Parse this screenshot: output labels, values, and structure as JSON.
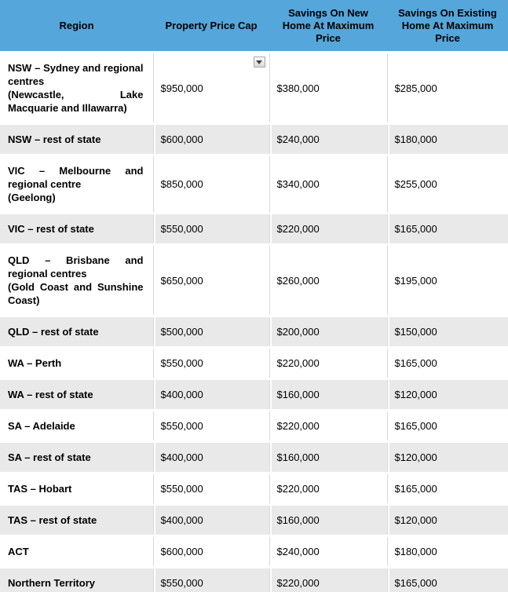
{
  "table": {
    "columns": [
      {
        "label": "Region"
      },
      {
        "label": "Property Price Cap"
      },
      {
        "label": "Savings On New Home At Maximum Price"
      },
      {
        "label": "Savings On Existing Home At Maximum Price"
      }
    ],
    "rows": [
      {
        "region": "NSW – Sydney and regional centres",
        "note": "(Newcastle, Lake Macquarie and Illawarra)",
        "cap": "$950,000",
        "savings_new": "$380,000",
        "savings_existing": "$285,000",
        "has_dropdown": true
      },
      {
        "region": "NSW – rest of state",
        "note": "",
        "cap": "$600,000",
        "savings_new": "$240,000",
        "savings_existing": "$180,000"
      },
      {
        "region": "VIC – Melbourne and regional centre",
        "note": "(Geelong)",
        "cap": "$850,000",
        "savings_new": "$340,000",
        "savings_existing": "$255,000"
      },
      {
        "region": "VIC – rest of state",
        "note": "",
        "cap": "$550,000",
        "savings_new": "$220,000",
        "savings_existing": "$165,000"
      },
      {
        "region": "QLD – Brisbane and regional centres",
        "note": "(Gold Coast and Sunshine Coast)",
        "cap": "$650,000",
        "savings_new": "$260,000",
        "savings_existing": "$195,000"
      },
      {
        "region": "QLD – rest of state",
        "note": "",
        "cap": "$500,000",
        "savings_new": "$200,000",
        "savings_existing": "$150,000"
      },
      {
        "region": "WA – Perth",
        "note": "",
        "cap": "$550,000",
        "savings_new": "$220,000",
        "savings_existing": "$165,000"
      },
      {
        "region": "WA – rest of state",
        "note": "",
        "cap": "$400,000",
        "savings_new": "$160,000",
        "savings_existing": "$120,000"
      },
      {
        "region": "SA – Adelaide",
        "note": "",
        "cap": "$550,000",
        "savings_new": "$220,000",
        "savings_existing": "$165,000"
      },
      {
        "region": "SA – rest of state",
        "note": "",
        "cap": "$400,000",
        "savings_new": "$160,000",
        "savings_existing": "$120,000"
      },
      {
        "region": "TAS – Hobart",
        "note": "",
        "cap": "$550,000",
        "savings_new": "$220,000",
        "savings_existing": "$165,000"
      },
      {
        "region": "TAS – rest of state",
        "note": "",
        "cap": "$400,000",
        "savings_new": "$160,000",
        "savings_existing": "$120,000"
      },
      {
        "region": "ACT",
        "note": "",
        "cap": "$600,000",
        "savings_new": "$240,000",
        "savings_existing": "$180,000"
      },
      {
        "region": "Northern Territory",
        "note": "",
        "cap": "$550,000",
        "savings_new": "$220,000",
        "savings_existing": "$165,000"
      }
    ]
  },
  "icons": {
    "dropdown": "filter-dropdown-arrow"
  },
  "colors": {
    "header_bg": "#55a6da",
    "alt_row_bg": "#e9e9e9",
    "grid_line": "#d9d9d9",
    "text": "#000000"
  }
}
